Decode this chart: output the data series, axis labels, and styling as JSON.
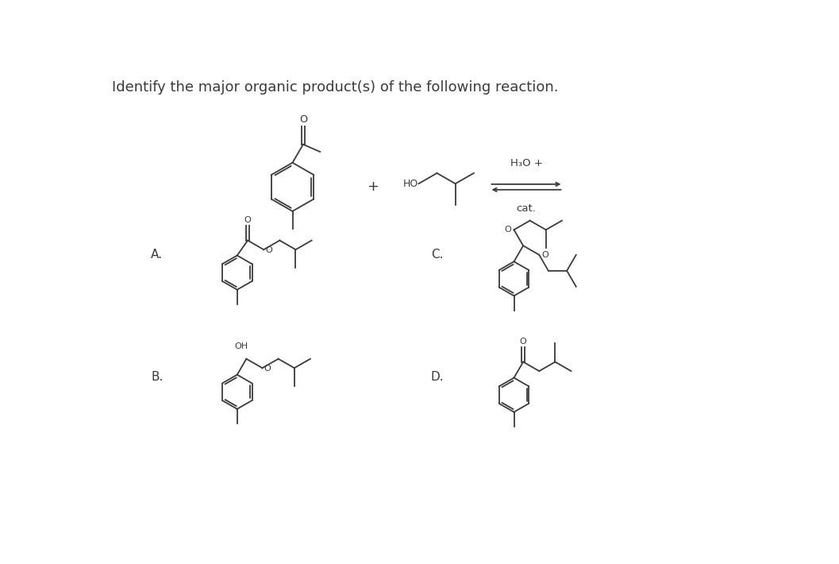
{
  "title": "Identify the major organic product(s) of the following reaction.",
  "title_fontsize": 13,
  "bg_color": "#ffffff",
  "line_color": "#3a3a3a",
  "text_color": "#3a3a3a",
  "arrow_label_top": "H₃O +",
  "arrow_label_bottom": "cat.",
  "label_A": "A.",
  "label_B": "B.",
  "label_C": "C.",
  "label_D": "D.",
  "fig_width": 10.57,
  "fig_height": 7.1
}
